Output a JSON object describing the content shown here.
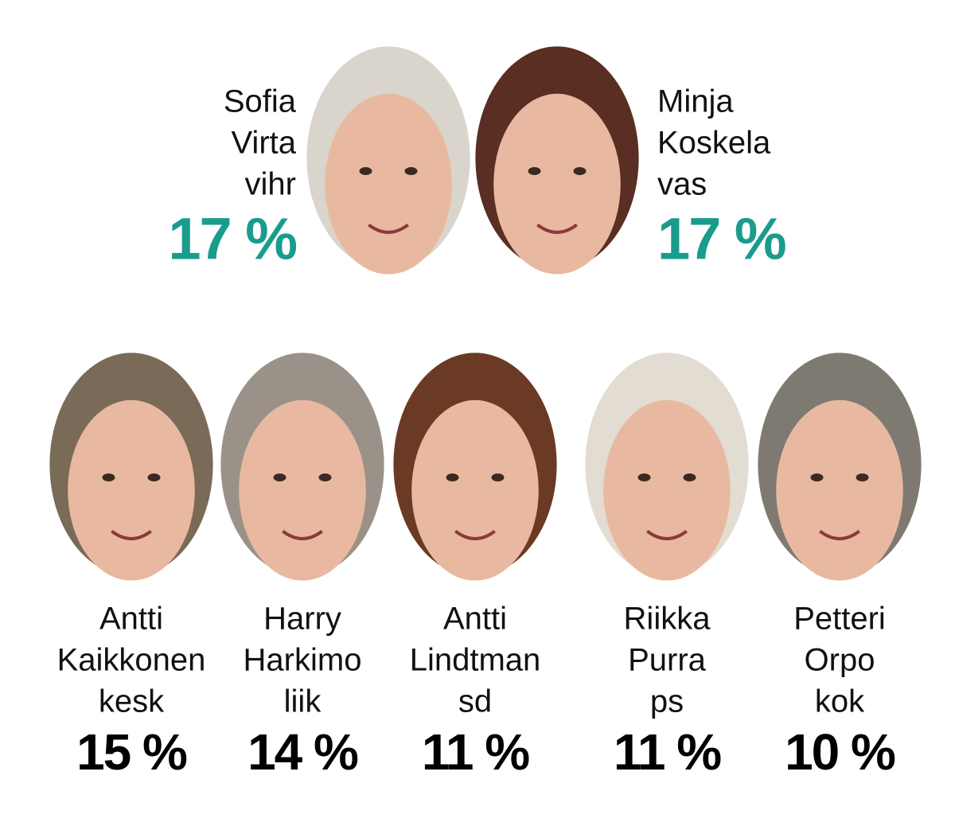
{
  "top": [
    {
      "lines": [
        "Sofia",
        "Virta",
        "vihr"
      ],
      "share": "17 %"
    },
    {
      "lines": [
        "Minja",
        "Koskela",
        "vas"
      ],
      "share": "17 %"
    }
  ],
  "bottom": [
    {
      "lines": [
        "Antti",
        "Kaikkonen",
        "kesk"
      ],
      "share": "15 %"
    },
    {
      "lines": [
        "Harry",
        "Harkimo",
        "liik"
      ],
      "share": "14 %"
    },
    {
      "lines": [
        "Antti",
        "Lindtman",
        "sd"
      ],
      "share": "11 %"
    },
    {
      "lines": [
        "Riikka",
        "Purra",
        "ps"
      ],
      "share": "11 %"
    },
    {
      "lines": [
        "Petteri",
        "Orpo",
        "kok"
      ],
      "share": "10 %"
    }
  ]
}
